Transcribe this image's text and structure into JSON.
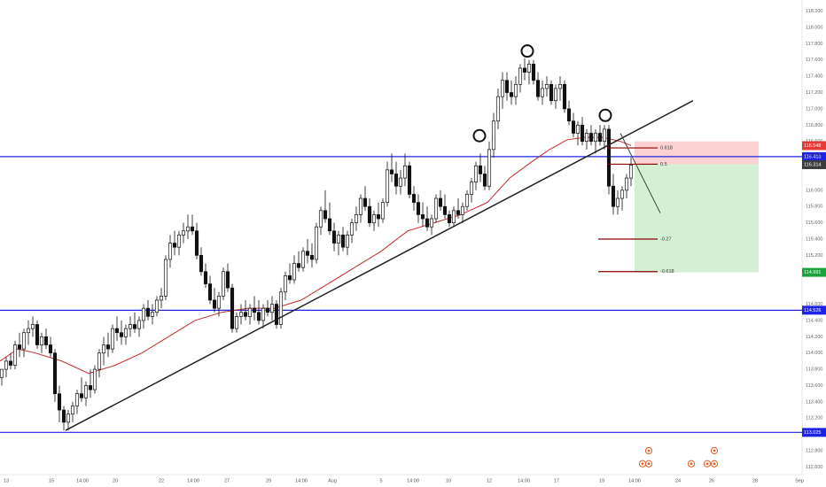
{
  "chart_data": {
    "type": "candlestick",
    "title": "",
    "xlabel": "",
    "ylabel": "",
    "ylim": [
      112.55,
      118.25
    ],
    "y_ticks": [
      "118.200",
      "118.000",
      "117.800",
      "117.600",
      "117.400",
      "117.200",
      "117.000",
      "116.800",
      "116.600",
      "116.320",
      "116.000",
      "115.800",
      "115.600",
      "115.400",
      "115.200",
      "115.000",
      "114.600",
      "114.400",
      "114.200",
      "114.000",
      "113.800",
      "113.600",
      "113.400",
      "113.200",
      "112.800",
      "112.600"
    ],
    "x_ticks": [
      "13",
      "15",
      "14:00",
      "20",
      "22",
      "14:00",
      "27",
      "29",
      "14:00",
      "Aug",
      "5",
      "14:00",
      "10",
      "12",
      "14:00",
      "17",
      "19",
      "14:00",
      "24",
      "26",
      "28",
      "Sep"
    ],
    "horizontal_levels": [
      {
        "label": "116.413",
        "value": 116.413,
        "color": "#1e22e6"
      },
      {
        "label": "114.526",
        "value": 114.526,
        "color": "#1e22e6"
      },
      {
        "label": "113.025",
        "value": 113.025,
        "color": "#1e22e6"
      }
    ],
    "price_badges": [
      {
        "label": "116.548",
        "value": 116.548,
        "color": "#e53935"
      },
      {
        "label": "116.314",
        "value": 116.314,
        "color": "#3c3c3c"
      },
      {
        "label": "114.991",
        "value": 114.991,
        "color": "#1aa33a"
      }
    ],
    "countdown": "44:33",
    "fib_levels": [
      {
        "label": "0.618",
        "value": 116.52
      },
      {
        "label": "0.5",
        "value": 116.32
      },
      {
        "label": "-0.27",
        "value": 115.4
      },
      {
        "label": "-0.618",
        "value": 115.0
      }
    ],
    "trade_zone": {
      "entry": 116.32,
      "stop": 116.6,
      "target": 114.991
    },
    "trendline": [
      {
        "t": 74,
        "p": 113.05
      },
      {
        "t": 782,
        "p": 117.1
      }
    ],
    "ma": [
      [
        0,
        113.9
      ],
      [
        20,
        114.05
      ],
      [
        40,
        114.0
      ],
      [
        70,
        113.9
      ],
      [
        100,
        113.75
      ],
      [
        130,
        113.85
      ],
      [
        160,
        114.0
      ],
      [
        190,
        114.2
      ],
      [
        220,
        114.4
      ],
      [
        250,
        114.5
      ],
      [
        280,
        114.55
      ],
      [
        310,
        114.55
      ],
      [
        340,
        114.65
      ],
      [
        370,
        114.85
      ],
      [
        400,
        115.05
      ],
      [
        430,
        115.25
      ],
      [
        460,
        115.5
      ],
      [
        490,
        115.6
      ],
      [
        520,
        115.7
      ],
      [
        550,
        115.85
      ],
      [
        575,
        116.15
      ],
      [
        600,
        116.35
      ],
      [
        620,
        116.5
      ],
      [
        640,
        116.62
      ],
      [
        660,
        116.65
      ],
      [
        680,
        116.65
      ],
      [
        700,
        116.6
      ],
      [
        712,
        116.55
      ]
    ],
    "candles": [
      [
        2,
        113.7,
        113.8,
        113.6,
        113.8
      ],
      [
        7,
        113.8,
        113.95,
        113.7,
        113.9
      ],
      [
        12,
        113.9,
        114.0,
        113.8,
        113.85
      ],
      [
        17,
        113.85,
        114.15,
        113.8,
        114.1
      ],
      [
        22,
        114.1,
        114.25,
        113.95,
        114.05
      ],
      [
        27,
        114.05,
        114.3,
        113.95,
        114.25
      ],
      [
        32,
        114.25,
        114.4,
        114.1,
        114.3
      ],
      [
        37,
        114.3,
        114.45,
        114.2,
        114.35
      ],
      [
        42,
        114.35,
        114.4,
        114.05,
        114.1
      ],
      [
        47,
        114.1,
        114.25,
        114.0,
        114.2
      ],
      [
        52,
        114.2,
        114.3,
        114.05,
        114.1
      ],
      [
        57,
        114.1,
        114.2,
        113.95,
        114.0
      ],
      [
        62,
        114.0,
        114.05,
        113.4,
        113.5
      ],
      [
        67,
        113.5,
        113.6,
        113.15,
        113.3
      ],
      [
        72,
        113.3,
        113.35,
        113.05,
        113.15
      ],
      [
        77,
        113.15,
        113.3,
        113.05,
        113.25
      ],
      [
        82,
        113.25,
        113.4,
        113.15,
        113.35
      ],
      [
        87,
        113.35,
        113.55,
        113.25,
        113.5
      ],
      [
        92,
        113.5,
        113.7,
        113.4,
        113.45
      ],
      [
        97,
        113.45,
        113.65,
        113.35,
        113.6
      ],
      [
        102,
        113.6,
        113.8,
        113.45,
        113.55
      ],
      [
        107,
        113.55,
        113.85,
        113.5,
        113.8
      ],
      [
        112,
        113.8,
        114.05,
        113.7,
        114.0
      ],
      [
        117,
        114.0,
        114.2,
        113.85,
        114.1
      ],
      [
        122,
        114.1,
        114.25,
        113.95,
        114.05
      ],
      [
        127,
        114.05,
        114.35,
        114.0,
        114.3
      ],
      [
        132,
        114.3,
        114.45,
        114.15,
        114.25
      ],
      [
        137,
        114.25,
        114.4,
        114.1,
        114.2
      ],
      [
        142,
        114.2,
        114.35,
        114.1,
        114.3
      ],
      [
        147,
        114.3,
        114.45,
        114.2,
        114.35
      ],
      [
        152,
        114.35,
        114.5,
        114.25,
        114.3
      ],
      [
        157,
        114.3,
        114.45,
        114.2,
        114.4
      ],
      [
        162,
        114.4,
        114.6,
        114.3,
        114.55
      ],
      [
        167,
        114.55,
        114.65,
        114.4,
        114.45
      ],
      [
        172,
        114.45,
        114.6,
        114.35,
        114.5
      ],
      [
        177,
        114.5,
        114.7,
        114.45,
        114.65
      ],
      [
        182,
        114.65,
        114.8,
        114.55,
        114.7
      ],
      [
        187,
        114.7,
        115.2,
        114.65,
        115.15
      ],
      [
        192,
        115.15,
        115.45,
        115.05,
        115.35
      ],
      [
        197,
        115.35,
        115.5,
        115.2,
        115.3
      ],
      [
        202,
        115.3,
        115.5,
        115.2,
        115.45
      ],
      [
        207,
        115.45,
        115.6,
        115.35,
        115.5
      ],
      [
        212,
        115.5,
        115.7,
        115.4,
        115.55
      ],
      [
        217,
        115.55,
        115.7,
        115.45,
        115.5
      ],
      [
        222,
        115.5,
        115.6,
        115.15,
        115.2
      ],
      [
        227,
        115.2,
        115.3,
        114.95,
        115.0
      ],
      [
        232,
        115.0,
        115.1,
        114.8,
        114.85
      ],
      [
        237,
        114.85,
        114.95,
        114.6,
        114.65
      ],
      [
        242,
        114.65,
        114.8,
        114.5,
        114.55
      ],
      [
        247,
        114.55,
        114.75,
        114.45,
        114.7
      ],
      [
        252,
        114.7,
        115.05,
        114.65,
        115.0
      ],
      [
        257,
        115.0,
        115.1,
        114.75,
        114.8
      ],
      [
        262,
        114.8,
        114.85,
        114.25,
        114.3
      ],
      [
        267,
        114.3,
        114.5,
        114.25,
        114.45
      ],
      [
        272,
        114.45,
        114.6,
        114.35,
        114.5
      ],
      [
        277,
        114.5,
        114.65,
        114.4,
        114.45
      ],
      [
        282,
        114.45,
        114.6,
        114.35,
        114.55
      ],
      [
        287,
        114.55,
        114.7,
        114.4,
        114.5
      ],
      [
        292,
        114.5,
        114.65,
        114.35,
        114.4
      ],
      [
        297,
        114.4,
        114.6,
        114.3,
        114.55
      ],
      [
        302,
        114.55,
        114.65,
        114.45,
        114.5
      ],
      [
        307,
        114.5,
        114.7,
        114.4,
        114.6
      ],
      [
        312,
        114.6,
        114.65,
        114.3,
        114.35
      ],
      [
        317,
        114.35,
        114.8,
        114.3,
        114.75
      ],
      [
        322,
        114.75,
        115.0,
        114.65,
        114.95
      ],
      [
        327,
        114.95,
        115.1,
        114.85,
        114.9
      ],
      [
        332,
        114.9,
        115.2,
        114.85,
        115.1
      ],
      [
        337,
        115.1,
        115.25,
        115.0,
        115.05
      ],
      [
        342,
        115.05,
        115.3,
        115.0,
        115.25
      ],
      [
        347,
        115.25,
        115.4,
        115.1,
        115.2
      ],
      [
        352,
        115.2,
        115.35,
        115.05,
        115.15
      ],
      [
        357,
        115.15,
        115.6,
        115.1,
        115.55
      ],
      [
        362,
        115.55,
        115.8,
        115.45,
        115.75
      ],
      [
        367,
        115.75,
        116.0,
        115.6,
        115.65
      ],
      [
        372,
        115.65,
        115.85,
        115.45,
        115.5
      ],
      [
        377,
        115.5,
        115.6,
        115.25,
        115.35
      ],
      [
        382,
        115.35,
        115.5,
        115.2,
        115.45
      ],
      [
        387,
        115.45,
        115.55,
        115.25,
        115.3
      ],
      [
        392,
        115.3,
        115.5,
        115.2,
        115.45
      ],
      [
        397,
        115.45,
        115.65,
        115.35,
        115.6
      ],
      [
        402,
        115.6,
        115.8,
        115.5,
        115.7
      ],
      [
        407,
        115.7,
        115.95,
        115.6,
        115.9
      ],
      [
        412,
        115.9,
        116.05,
        115.75,
        115.8
      ],
      [
        417,
        115.8,
        115.9,
        115.55,
        115.6
      ],
      [
        422,
        115.6,
        115.75,
        115.5,
        115.7
      ],
      [
        427,
        115.7,
        115.85,
        115.55,
        115.65
      ],
      [
        432,
        115.65,
        115.9,
        115.6,
        115.85
      ],
      [
        437,
        115.85,
        116.35,
        115.8,
        116.25
      ],
      [
        442,
        116.25,
        116.45,
        116.1,
        116.2
      ],
      [
        447,
        116.2,
        116.35,
        115.95,
        116.05
      ],
      [
        452,
        116.05,
        116.25,
        115.95,
        116.15
      ],
      [
        457,
        116.15,
        116.45,
        116.05,
        116.3
      ],
      [
        462,
        116.3,
        116.35,
        115.9,
        115.95
      ],
      [
        467,
        115.95,
        116.05,
        115.75,
        115.85
      ],
      [
        472,
        115.85,
        115.95,
        115.6,
        115.7
      ],
      [
        477,
        115.7,
        115.85,
        115.55,
        115.65
      ],
      [
        482,
        115.65,
        115.8,
        115.5,
        115.55
      ],
      [
        487,
        115.55,
        115.7,
        115.45,
        115.65
      ],
      [
        492,
        115.65,
        115.95,
        115.6,
        115.9
      ],
      [
        497,
        115.9,
        116.0,
        115.75,
        115.8
      ],
      [
        502,
        115.8,
        115.95,
        115.65,
        115.7
      ],
      [
        507,
        115.7,
        115.75,
        115.55,
        115.6
      ],
      [
        512,
        115.6,
        115.8,
        115.55,
        115.75
      ],
      [
        517,
        115.75,
        115.9,
        115.65,
        115.7
      ],
      [
        522,
        115.7,
        115.85,
        115.6,
        115.8
      ],
      [
        527,
        115.8,
        116.0,
        115.75,
        115.95
      ],
      [
        532,
        115.95,
        116.15,
        115.85,
        116.1
      ],
      [
        537,
        116.1,
        116.35,
        116.0,
        116.3
      ],
      [
        542,
        116.3,
        116.45,
        116.1,
        116.2
      ],
      [
        547,
        116.2,
        116.3,
        116.0,
        116.05
      ],
      [
        552,
        116.05,
        116.6,
        116.0,
        116.5
      ],
      [
        557,
        116.5,
        116.95,
        116.4,
        116.85
      ],
      [
        562,
        116.85,
        117.25,
        116.75,
        117.15
      ],
      [
        567,
        117.15,
        117.45,
        117.0,
        117.35
      ],
      [
        572,
        117.35,
        117.45,
        117.1,
        117.2
      ],
      [
        577,
        117.2,
        117.35,
        117.05,
        117.15
      ],
      [
        582,
        117.15,
        117.4,
        117.05,
        117.3
      ],
      [
        587,
        117.3,
        117.55,
        117.2,
        117.5
      ],
      [
        592,
        117.5,
        117.62,
        117.35,
        117.45
      ],
      [
        597,
        117.45,
        117.6,
        117.3,
        117.55
      ],
      [
        602,
        117.55,
        117.6,
        117.3,
        117.35
      ],
      [
        607,
        117.35,
        117.45,
        117.1,
        117.15
      ],
      [
        612,
        117.15,
        117.35,
        117.05,
        117.25
      ],
      [
        617,
        117.25,
        117.4,
        117.15,
        117.3
      ],
      [
        622,
        117.3,
        117.35,
        117.05,
        117.1
      ],
      [
        627,
        117.1,
        117.3,
        117.0,
        117.25
      ],
      [
        632,
        117.25,
        117.4,
        117.1,
        117.3
      ],
      [
        637,
        117.3,
        117.35,
        116.95,
        117.0
      ],
      [
        642,
        117.0,
        117.1,
        116.8,
        116.85
      ],
      [
        647,
        116.85,
        116.95,
        116.65,
        116.7
      ],
      [
        652,
        116.7,
        116.85,
        116.55,
        116.8
      ],
      [
        657,
        116.8,
        116.9,
        116.55,
        116.6
      ],
      [
        662,
        116.6,
        116.75,
        116.5,
        116.7
      ],
      [
        667,
        116.7,
        116.8,
        116.55,
        116.6
      ],
      [
        672,
        116.6,
        116.75,
        116.45,
        116.7
      ],
      [
        677,
        116.7,
        116.8,
        116.55,
        116.6
      ],
      [
        682,
        116.6,
        116.8,
        116.5,
        116.75
      ],
      [
        687,
        116.75,
        116.8,
        115.95,
        116.05
      ],
      [
        692,
        116.05,
        116.2,
        115.7,
        115.8
      ],
      [
        697,
        115.8,
        116.0,
        115.7,
        115.9
      ],
      [
        702,
        115.9,
        116.05,
        115.75,
        116.0
      ],
      [
        707,
        116.0,
        116.2,
        115.9,
        116.15
      ],
      [
        712,
        116.15,
        116.4,
        116.05,
        116.31
      ]
    ],
    "circles": [
      {
        "t": 595,
        "p": 117.71
      },
      {
        "t": 541,
        "p": 116.67
      },
      {
        "t": 683,
        "p": 116.92
      }
    ],
    "event_markers": [
      {
        "t": 725,
        "p": 112.64
      },
      {
        "t": 732,
        "p": 112.64
      },
      {
        "t": 732,
        "p": 112.8
      },
      {
        "t": 780,
        "p": 112.64
      },
      {
        "t": 798,
        "p": 112.64
      },
      {
        "t": 806,
        "p": 112.64
      },
      {
        "t": 806,
        "p": 112.8
      }
    ]
  }
}
